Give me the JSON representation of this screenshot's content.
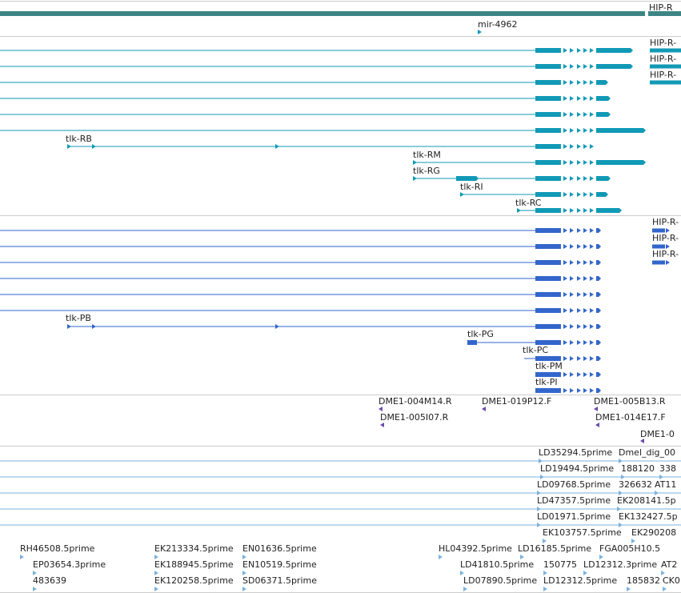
{
  "colors": {
    "gene": "#3d8585",
    "mrna": "#1199b6",
    "protein": "#3366cc",
    "probe": "#6a4ab0",
    "est": "#7bb3dd",
    "separator": "#cccccc"
  },
  "tracks": {
    "gene": {
      "labels": [
        "HIP-R"
      ]
    },
    "mirna": {
      "labels": [
        "mir-4962"
      ]
    },
    "transcripts": {
      "labels": [
        "HIP-R-",
        "HIP-R-",
        "HIP-R-",
        "tlk-RB",
        "tlk-RM",
        "tlk-RG",
        "tlk-RI",
        "tlk-RC"
      ]
    },
    "proteins": {
      "labels": [
        "HIP-R-",
        "HIP-R-",
        "HIP-R-",
        "tlk-PB",
        "tlk-PG",
        "tlk-PC",
        "tlk-PM",
        "tlk-PI"
      ]
    },
    "probes": {
      "labels": [
        "DME1-004M14.R",
        "DME1-019P12.F",
        "DME1-005B13.R",
        "DME1-005I07.R",
        "DME1-014E17.F",
        "DME1-0"
      ]
    },
    "ests": {
      "labels": [
        "LD35294.5prime",
        "Dmel_dig_00",
        "LD19494.5prime",
        "188120",
        "338",
        "LD09768.5prime",
        "326632",
        "AT11",
        "LD47357.5prime",
        "EK208141.5p",
        "LD01971.5prime",
        "EK132427.5p",
        "EK103757.5prime",
        "EK290208",
        "RH46508.5prime",
        "EK213334.5prime",
        "EN01636.5prime",
        "HL04392.5prime",
        "LD16185.5prime",
        "FGA005H10.5",
        "EP03654.3prime",
        "EK188945.5prime",
        "EN10519.5prime",
        "LD41810.5prime",
        "150775",
        "LD12312.3prime",
        "AT2",
        "483639",
        "EK120258.5prime",
        "SD06371.5prime",
        "LD07890.5prime",
        "LD12312.5prime",
        "185832",
        "CK0"
      ]
    }
  }
}
